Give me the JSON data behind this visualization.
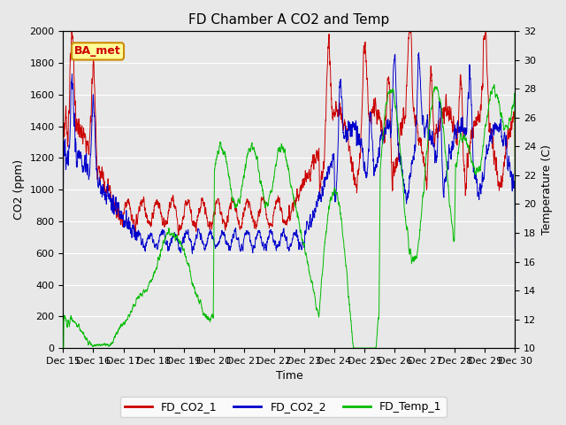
{
  "title": "FD Chamber A CO2 and Temp",
  "xlabel": "Time",
  "ylabel_left": "CO2 (ppm)",
  "ylabel_right": "Temperature (C)",
  "ylim_left": [
    0,
    2000
  ],
  "ylim_right": [
    10,
    32
  ],
  "yticks_left": [
    0,
    200,
    400,
    600,
    800,
    1000,
    1200,
    1400,
    1600,
    1800,
    2000
  ],
  "yticks_right": [
    10,
    12,
    14,
    16,
    18,
    20,
    22,
    24,
    26,
    28,
    30,
    32
  ],
  "xtick_labels": [
    "Dec 15",
    "Dec 16",
    "Dec 17",
    "Dec 18",
    "Dec 19",
    "Dec 20",
    "Dec 21",
    "Dec 22",
    "Dec 23",
    "Dec 24",
    "Dec 25",
    "Dec 26",
    "Dec 27",
    "Dec 28",
    "Dec 29",
    "Dec 30"
  ],
  "color_co2_1": "#cc0000",
  "color_co2_2": "#0000cc",
  "color_temp": "#00bb00",
  "legend_labels": [
    "FD_CO2_1",
    "FD_CO2_2",
    "FD_Temp_1"
  ],
  "annotation_text": "BA_met",
  "annotation_color_bg": "#ffff99",
  "annotation_color_border": "#cc8800",
  "annotation_color_text": "#cc0000",
  "background_color": "#e8e8e8",
  "grid_color": "#ffffff",
  "title_fontsize": 11,
  "axis_fontsize": 9,
  "tick_fontsize": 8,
  "legend_fontsize": 9,
  "num_points": 3000
}
